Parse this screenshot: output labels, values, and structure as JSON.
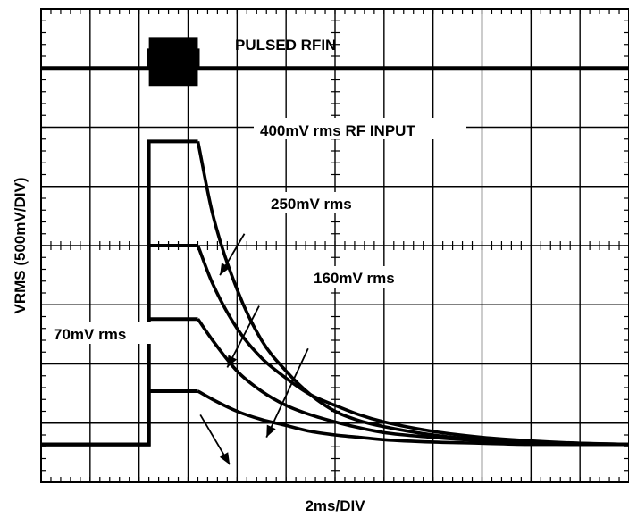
{
  "chart_data": {
    "type": "line",
    "title": "",
    "xlabel": "2ms/DIV",
    "ylabel": "VRMS (500mV/DIV)",
    "x_unit": "ms",
    "y_unit": "V",
    "xlim": [
      -2,
      22
    ],
    "ylim": [
      -1.5,
      2.5
    ],
    "grid": true,
    "legend": "none",
    "series": [
      {
        "name": "PULSED RFIN",
        "x": [
          -2,
          2.4,
          2.4,
          4.4,
          4.4,
          22
        ],
        "y": [
          2.0,
          2.0,
          2.15,
          2.15,
          2.0,
          2.0
        ]
      },
      {
        "name": "400mV rms RF INPUT",
        "x": [
          -2,
          2.4,
          2.4,
          4.4,
          5.0,
          6.0,
          7.0,
          8.0,
          9.0,
          10.0,
          11.0,
          12.0,
          14.0,
          16.0,
          18.0,
          20.0,
          22.0
        ],
        "y": [
          -1.18,
          -1.18,
          1.38,
          1.38,
          0.77,
          0.13,
          -0.3,
          -0.56,
          -0.76,
          -0.9,
          -0.98,
          -1.03,
          -1.1,
          -1.14,
          -1.16,
          -1.17,
          -1.18
        ]
      },
      {
        "name": "250mV rms",
        "x": [
          -2,
          2.4,
          2.4,
          4.4,
          5.0,
          6.0,
          7.0,
          8.0,
          9.0,
          10.0,
          11.0,
          12.0,
          14.0,
          16.0,
          18.0,
          20.0,
          22.0
        ],
        "y": [
          -1.18,
          -1.18,
          0.5,
          0.5,
          0.18,
          -0.2,
          -0.45,
          -0.62,
          -0.76,
          -0.85,
          -0.93,
          -0.99,
          -1.07,
          -1.12,
          -1.15,
          -1.17,
          -1.18
        ]
      },
      {
        "name": "160mV rms",
        "x": [
          -2,
          2.4,
          2.4,
          4.4,
          5.0,
          6.0,
          7.0,
          8.0,
          9.0,
          10.0,
          11.0,
          12.0,
          14.0,
          16.0,
          18.0,
          20.0,
          22.0
        ],
        "y": [
          -1.18,
          -1.18,
          -0.12,
          -0.12,
          -0.3,
          -0.56,
          -0.73,
          -0.85,
          -0.93,
          -0.99,
          -1.04,
          -1.08,
          -1.12,
          -1.15,
          -1.17,
          -1.18,
          -1.18
        ]
      },
      {
        "name": "70mV rms",
        "x": [
          -2,
          2.4,
          2.4,
          4.4,
          5.0,
          6.0,
          7.0,
          8.0,
          9.0,
          10.0,
          11.0,
          12.0,
          14.0,
          16.0,
          18.0,
          20.0,
          22.0
        ],
        "y": [
          -1.18,
          -1.18,
          -0.73,
          -0.73,
          -0.8,
          -0.9,
          -0.97,
          -1.02,
          -1.07,
          -1.1,
          -1.12,
          -1.14,
          -1.16,
          -1.17,
          -1.18,
          -1.18,
          -1.18
        ]
      }
    ],
    "annotations": [
      {
        "text": "PULSED RFIN",
        "series": "PULSED RFIN"
      },
      {
        "text": "400mV rms RF INPUT",
        "series": "400mV rms RF INPUT"
      },
      {
        "text": "250mV rms",
        "series": "250mV rms"
      },
      {
        "text": "160mV rms",
        "series": "160mV rms"
      },
      {
        "text": "70mV rms",
        "series": "70mV rms"
      }
    ]
  }
}
